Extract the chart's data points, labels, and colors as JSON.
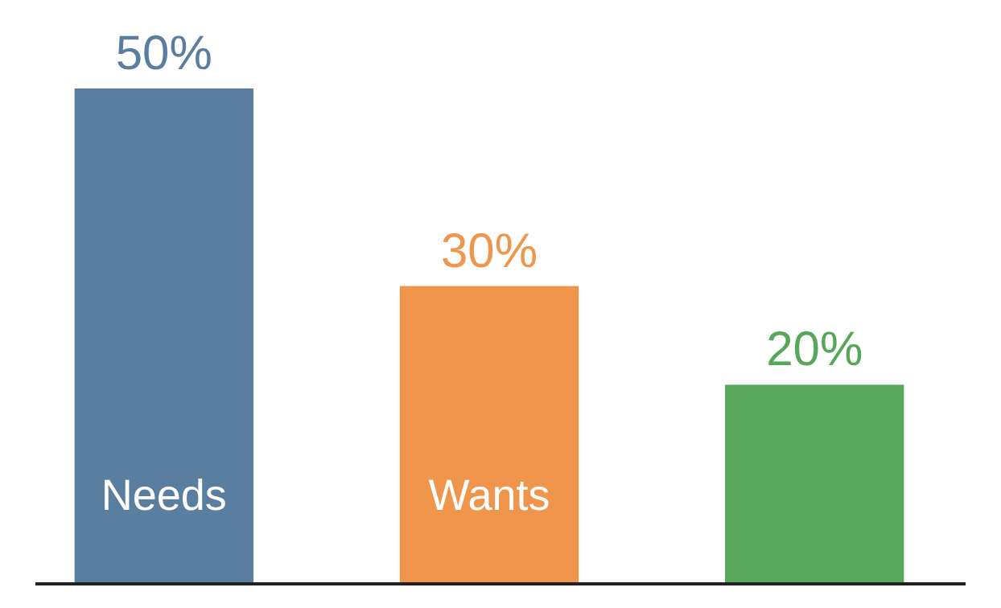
{
  "chart_data": {
    "type": "bar",
    "categories": [
      "Needs",
      "Wants",
      null
    ],
    "values": [
      50,
      30,
      20
    ],
    "colors": [
      "#5a7ea0",
      "#f0964c",
      "#56a75a"
    ],
    "value_labels": [
      "50%",
      "30%",
      "20%"
    ]
  }
}
